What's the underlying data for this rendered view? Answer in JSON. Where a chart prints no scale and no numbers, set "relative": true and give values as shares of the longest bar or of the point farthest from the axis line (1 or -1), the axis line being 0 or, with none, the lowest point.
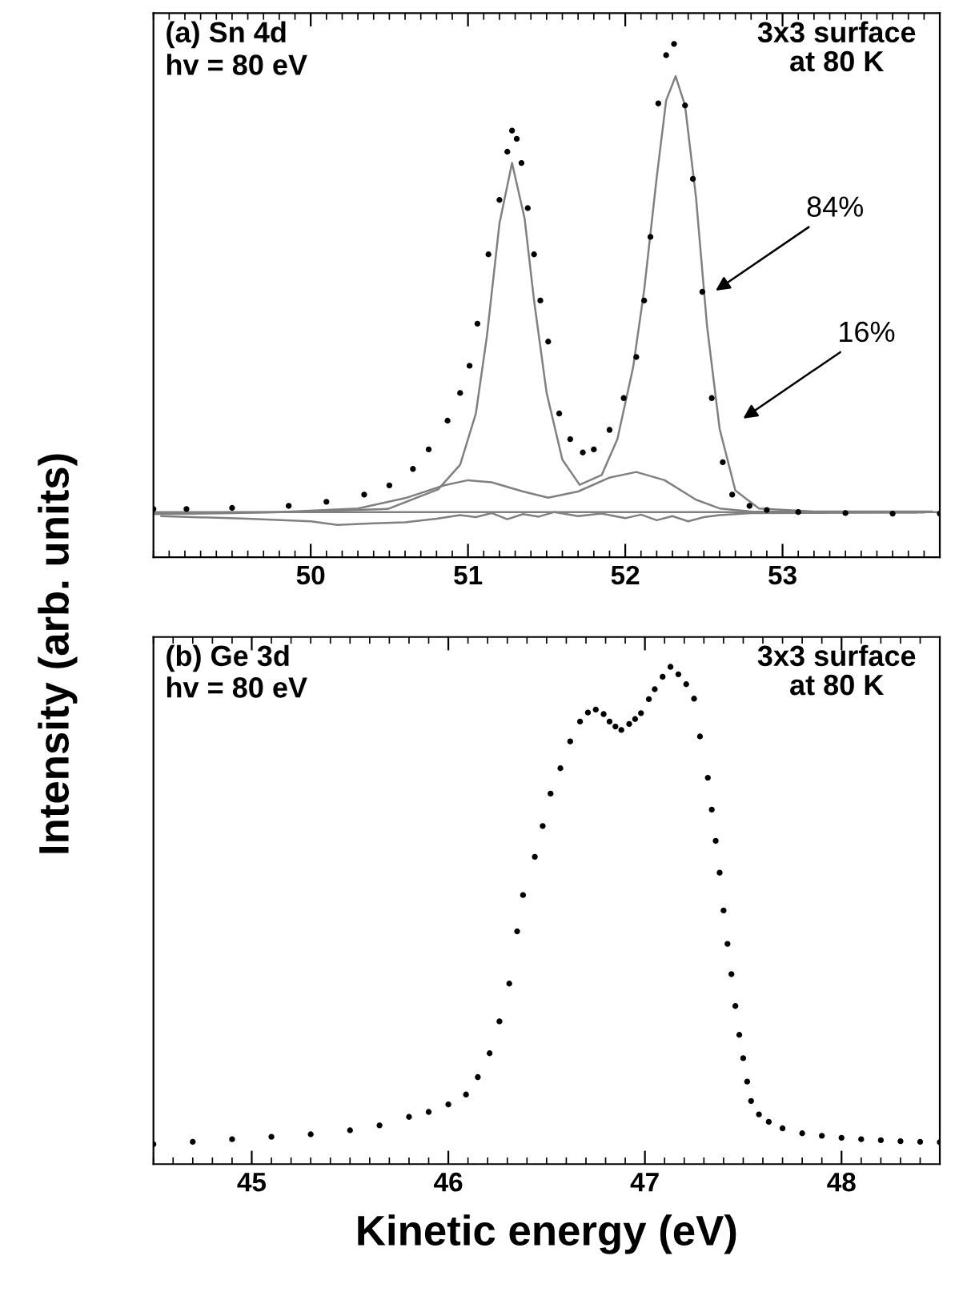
{
  "chart_data": [
    {
      "type": "scatter",
      "relative": true,
      "ylabel": "Intensity (arb. units)",
      "xlim": [
        49.0,
        54.0
      ],
      "xticks": [
        50,
        51,
        52,
        53
      ],
      "tick_labels": "x",
      "grid": false,
      "legend": false,
      "annotations": [
        "(a) Sn 4d",
        "hv = 80 eV",
        "3x3 surface\nat 80 K",
        "84%",
        "16%"
      ],
      "series": [
        {
          "marker": "circle",
          "color": "#000000",
          "x": [
            49.0,
            49.21,
            49.5,
            49.86,
            50.1,
            50.34,
            50.5,
            50.65,
            50.75,
            50.87,
            50.95,
            51.01,
            51.06,
            51.13,
            51.2,
            51.25,
            51.28,
            51.31,
            51.34,
            51.38,
            51.42,
            51.46,
            51.51,
            51.58,
            51.65,
            51.73,
            51.8,
            51.9,
            51.99,
            52.07,
            52.12,
            52.16,
            52.21,
            52.26,
            52.31,
            52.38,
            52.43,
            52.49,
            52.55,
            52.62,
            52.68,
            52.79,
            52.9,
            53.1,
            53.4,
            53.7,
            54.0
          ],
          "values": [
            0.094,
            0.094,
            0.096,
            0.1,
            0.108,
            0.122,
            0.14,
            0.172,
            0.21,
            0.266,
            0.32,
            0.373,
            0.455,
            0.59,
            0.696,
            0.79,
            0.831,
            0.815,
            0.768,
            0.68,
            0.59,
            0.5,
            0.42,
            0.28,
            0.23,
            0.204,
            0.21,
            0.248,
            0.31,
            0.39,
            0.5,
            0.624,
            0.884,
            0.978,
            1.0,
            0.88,
            0.737,
            0.517,
            0.31,
            0.185,
            0.122,
            0.1,
            0.092,
            0.088,
            0.086,
            0.085,
            0.085
          ]
        },
        {
          "type": "line",
          "marker": "none",
          "color": "#808080",
          "x": [
            49.0,
            49.5,
            50.0,
            50.49,
            50.81,
            50.95,
            51.05,
            51.12,
            51.2,
            51.28,
            51.36,
            51.42,
            51.5,
            51.6,
            51.71,
            51.85,
            51.95,
            52.05,
            52.12,
            52.2,
            52.26,
            52.32,
            52.38,
            52.45,
            52.52,
            52.6,
            52.7,
            52.85,
            53.2,
            53.95
          ],
          "values": [
            0.084,
            0.086,
            0.089,
            0.094,
            0.132,
            0.18,
            0.28,
            0.43,
            0.65,
            0.768,
            0.66,
            0.5,
            0.32,
            0.19,
            0.141,
            0.16,
            0.23,
            0.37,
            0.52,
            0.74,
            0.89,
            0.937,
            0.88,
            0.7,
            0.45,
            0.25,
            0.13,
            0.095,
            0.089,
            0.089
          ]
        },
        {
          "type": "line",
          "marker": "none",
          "color": "#808080",
          "x": [
            49.02,
            49.8,
            50.3,
            50.6,
            50.85,
            51.0,
            51.15,
            51.35,
            51.51,
            51.7,
            51.9,
            52.07,
            52.25,
            52.45,
            52.6,
            52.8,
            53.9
          ],
          "values": [
            0.085,
            0.088,
            0.095,
            0.115,
            0.14,
            0.15,
            0.146,
            0.128,
            0.116,
            0.128,
            0.155,
            0.166,
            0.15,
            0.112,
            0.095,
            0.089,
            0.087
          ]
        },
        {
          "type": "line",
          "marker": "none",
          "color": "#808080",
          "x": [
            49.0,
            54.0
          ],
          "values": [
            0.088,
            0.088
          ]
        },
        {
          "type": "line",
          "marker": "none",
          "color": "#808080",
          "x": [
            49.05,
            49.6,
            50.0,
            50.17,
            50.4,
            50.6,
            50.8,
            50.95,
            51.05,
            51.15,
            51.25,
            51.35,
            51.45,
            51.55,
            51.7,
            51.85,
            52.0,
            52.1,
            52.2,
            52.3,
            52.4,
            52.5,
            52.6,
            52.8,
            53.85
          ],
          "values": [
            0.08,
            0.075,
            0.07,
            0.063,
            0.066,
            0.068,
            0.075,
            0.082,
            0.078,
            0.086,
            0.074,
            0.084,
            0.079,
            0.088,
            0.08,
            0.085,
            0.076,
            0.083,
            0.072,
            0.08,
            0.07,
            0.078,
            0.082,
            0.086,
            0.087
          ]
        }
      ]
    },
    {
      "type": "scatter",
      "relative": true,
      "xlabel": "Kinetic energy (eV)",
      "xlim": [
        44.5,
        48.5
      ],
      "xticks": [
        45,
        46,
        47,
        48
      ],
      "tick_labels": "x",
      "grid": false,
      "legend": false,
      "marker": "circle",
      "annotations": [
        "(b) Ge 3d",
        "hv = 80 eV",
        "3x3 surface\nat 80 K"
      ],
      "series": [
        {
          "color": "#000000",
          "x": [
            44.5,
            44.7,
            44.9,
            45.1,
            45.3,
            45.5,
            45.65,
            45.8,
            45.9,
            46.0,
            46.09,
            46.15,
            46.21,
            46.26,
            46.31,
            46.35,
            46.38,
            46.44,
            46.48,
            46.52,
            46.57,
            46.62,
            46.67,
            46.71,
            46.75,
            46.79,
            46.82,
            46.85,
            46.88,
            46.92,
            46.95,
            46.98,
            47.02,
            47.05,
            47.09,
            47.13,
            47.17,
            47.21,
            47.25,
            47.28,
            47.32,
            47.34,
            47.36,
            47.38,
            47.4,
            47.42,
            47.44,
            47.46,
            47.48,
            47.5,
            47.52,
            47.54,
            47.58,
            47.63,
            47.7,
            47.8,
            47.9,
            48.0,
            48.1,
            48.2,
            48.3,
            48.4,
            48.5
          ],
          "values": [
            0.04,
            0.045,
            0.05,
            0.055,
            0.06,
            0.068,
            0.078,
            0.095,
            0.105,
            0.12,
            0.14,
            0.175,
            0.223,
            0.287,
            0.363,
            0.468,
            0.541,
            0.618,
            0.68,
            0.745,
            0.796,
            0.85,
            0.89,
            0.908,
            0.914,
            0.905,
            0.89,
            0.88,
            0.873,
            0.885,
            0.895,
            0.907,
            0.935,
            0.955,
            0.98,
            1.0,
            0.985,
            0.965,
            0.936,
            0.86,
            0.777,
            0.713,
            0.65,
            0.586,
            0.51,
            0.443,
            0.382,
            0.318,
            0.26,
            0.213,
            0.166,
            0.127,
            0.1,
            0.085,
            0.072,
            0.062,
            0.057,
            0.053,
            0.05,
            0.048,
            0.046,
            0.045,
            0.044
          ]
        }
      ]
    }
  ]
}
